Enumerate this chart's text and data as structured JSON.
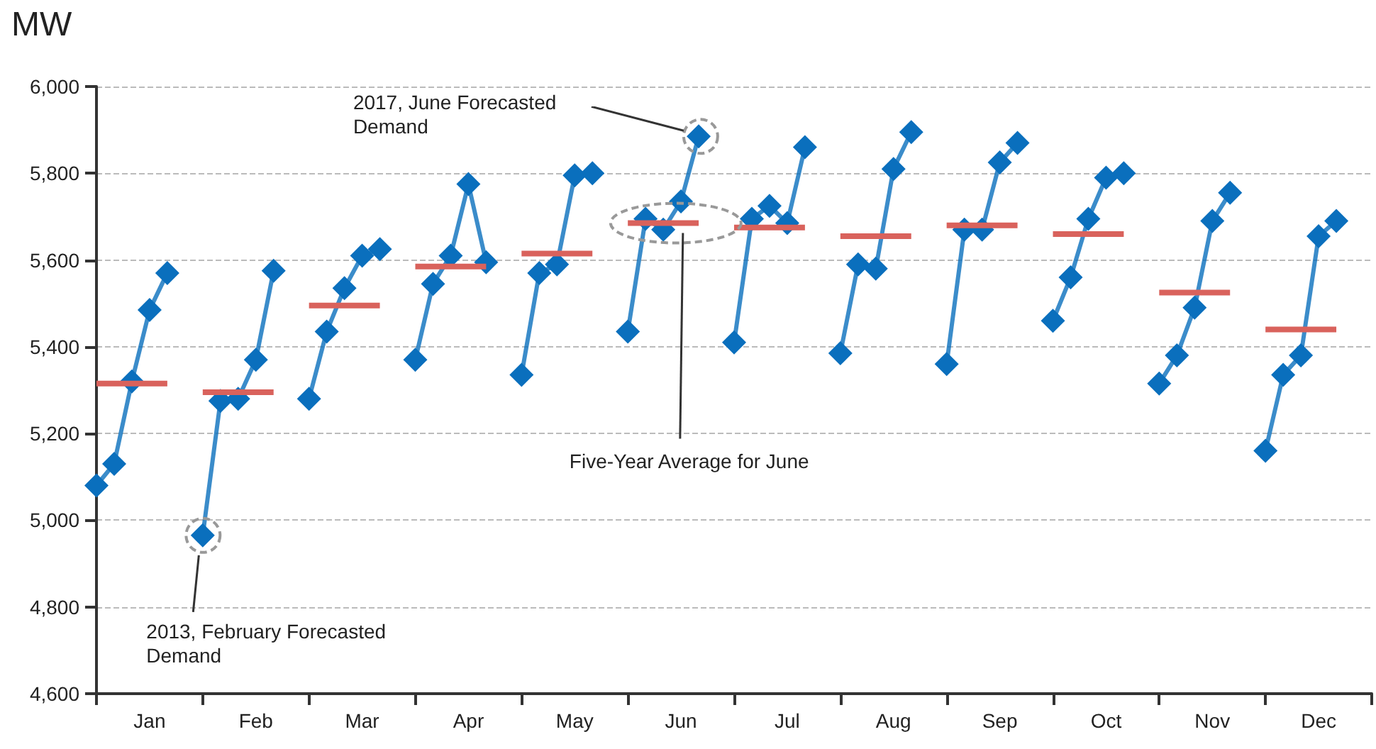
{
  "chart_data": {
    "type": "line",
    "ylabel": "MW",
    "categories": [
      null,
      null,
      null,
      "Jan",
      null,
      null,
      null,
      null,
      null,
      "Feb",
      null,
      null,
      null,
      null,
      null,
      "Mar",
      null,
      null,
      null,
      null,
      null,
      "Apr",
      null,
      null,
      null,
      null,
      null,
      "May",
      null,
      null,
      null,
      null,
      null,
      "Jun",
      null,
      null,
      null,
      null,
      null,
      "Jul",
      null,
      null,
      null,
      null,
      null,
      "Aug",
      null,
      null,
      null,
      null,
      null,
      "Sep",
      null,
      null,
      null,
      null,
      null,
      "Oct",
      null,
      null,
      null,
      null,
      null,
      "Nov",
      null,
      null,
      null,
      null,
      null,
      "Dec",
      null,
      null,
      null
    ],
    "ylim": [
      4600,
      6000
    ],
    "yticks": [
      {
        "value": 4600,
        "label": "4,600"
      },
      {
        "value": 4800,
        "label": "4,800"
      },
      {
        "value": 5000,
        "label": "5,000"
      },
      {
        "value": 5200,
        "label": "5,200"
      },
      {
        "value": 5400,
        "label": "5,400"
      },
      {
        "value": 5600,
        "label": "5,600"
      },
      {
        "value": 5800,
        "label": "5,800"
      },
      {
        "value": 6000,
        "label": "6,000"
      }
    ],
    "grid": "y",
    "line_style": "solid",
    "series": [
      {
        "color": "#d9625c",
        "marker": "none",
        "values": [
          5315,
          5315,
          5315,
          5315,
          5315,
          null,
          5295,
          5295,
          5295,
          5295,
          5295,
          null,
          5495,
          5495,
          5495,
          5495,
          5495,
          null,
          5585,
          5585,
          5585,
          5585,
          5585,
          null,
          5615,
          5615,
          5615,
          5615,
          5615,
          null,
          5685,
          5685,
          5685,
          5685,
          5685,
          null,
          5675,
          5675,
          5675,
          5675,
          5675,
          null,
          5655,
          5655,
          5655,
          5655,
          5655,
          null,
          5680,
          5680,
          5680,
          5680,
          5680,
          null,
          5660,
          5660,
          5660,
          5660,
          5660,
          null,
          5525,
          5525,
          5525,
          5525,
          5525,
          null,
          5440,
          5440,
          5440,
          5440,
          5440,
          null,
          null
        ]
      },
      {
        "color": "#0a6fbd",
        "marker": "diamond",
        "values": [
          5080,
          5130,
          5320,
          5485,
          5570,
          null,
          4965,
          5275,
          5280,
          5370,
          5575,
          null,
          5280,
          5435,
          5535,
          5610,
          5625,
          null,
          5370,
          5545,
          5610,
          5775,
          5595,
          null,
          5335,
          5570,
          5590,
          5795,
          5800,
          null,
          5435,
          5695,
          5670,
          5735,
          5885,
          null,
          5410,
          5695,
          5725,
          5685,
          5860,
          null,
          5385,
          5590,
          5580,
          5810,
          5895,
          null,
          5360,
          5670,
          5670,
          5825,
          5870,
          null,
          5460,
          5560,
          5695,
          5790,
          5800,
          null,
          5315,
          5380,
          5490,
          5690,
          5755,
          null,
          5160,
          5335,
          5380,
          5655,
          5690,
          null,
          null
        ]
      }
    ],
    "annotations": [
      "2013, February Forecasted Demand",
      "2017, June Forecasted Demand",
      {
        "text": "Five-Year Average for June",
        "x": "Jun",
        "y": 5685
      }
    ]
  }
}
